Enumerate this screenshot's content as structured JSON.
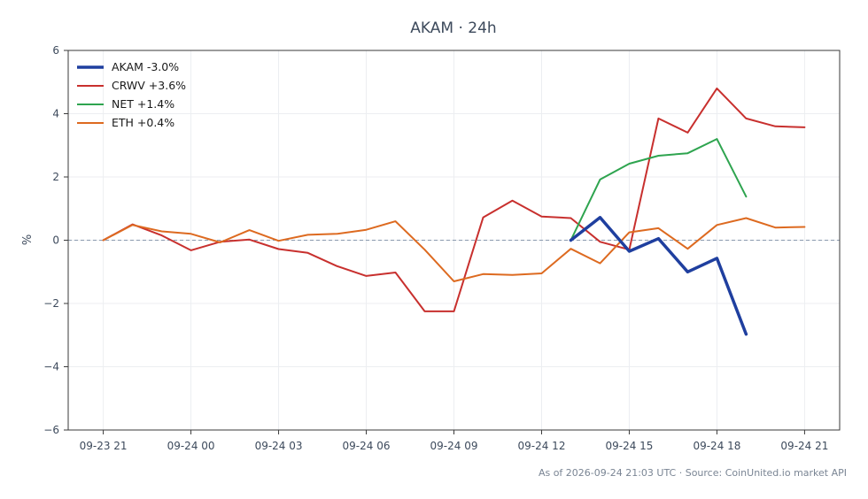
{
  "chart_data": {
    "type": "line",
    "title": "AKAM · 24h",
    "xlabel": "",
    "ylabel": "%",
    "xlim": [
      -1.2,
      25.2
    ],
    "ylim": [
      -6,
      6
    ],
    "x_ticks": [
      0,
      3,
      6,
      9,
      12,
      15,
      18,
      21,
      24
    ],
    "x_tick_labels": [
      "09-23 21",
      "09-24 00",
      "09-24 03",
      "09-24 06",
      "09-24 09",
      "09-24 12",
      "09-24 15",
      "09-24 18",
      "09-24 21"
    ],
    "y_ticks": [
      -6,
      -4,
      -2,
      0,
      2,
      4,
      6
    ],
    "y_tick_labels": [
      "−6",
      "−4",
      "−2",
      "0",
      "2",
      "4",
      "6"
    ],
    "grid": true,
    "zero_line": true,
    "legend_position": "top-left",
    "series": [
      {
        "name": "AKAM -3.0%",
        "color": "#1f3f9f",
        "emphasis": true,
        "x": [
          16,
          17,
          18,
          19,
          20,
          21,
          22
        ],
        "y": [
          0,
          0.72,
          -0.35,
          0.05,
          -1.0,
          -0.57,
          -2.97
        ]
      },
      {
        "name": "CRWV +3.6%",
        "color": "#c8302e",
        "x": [
          0,
          1,
          2,
          3,
          4,
          5,
          6,
          7,
          8,
          9,
          10,
          11,
          12,
          13,
          14,
          15,
          16,
          17,
          18,
          19,
          20,
          21,
          22,
          23,
          24
        ],
        "y": [
          0,
          0.5,
          0.15,
          -0.32,
          -0.05,
          0.02,
          -0.28,
          -0.4,
          -0.82,
          -1.13,
          -1.02,
          -2.25,
          -2.25,
          0.72,
          1.25,
          0.75,
          0.7,
          -0.05,
          -0.3,
          3.85,
          3.4,
          4.8,
          3.85,
          3.6,
          3.57
        ]
      },
      {
        "name": "NET +1.4%",
        "color": "#2ea44f",
        "x": [
          16,
          17,
          18,
          19,
          20,
          21,
          22
        ],
        "y": [
          0,
          1.92,
          2.42,
          2.67,
          2.75,
          3.2,
          1.38
        ]
      },
      {
        "name": "ETH +0.4%",
        "color": "#dd6a20",
        "x": [
          0,
          1,
          2,
          3,
          4,
          5,
          6,
          7,
          8,
          9,
          10,
          11,
          12,
          13,
          14,
          15,
          16,
          17,
          18,
          19,
          20,
          21,
          22,
          23,
          24
        ],
        "y": [
          0,
          0.48,
          0.28,
          0.2,
          -0.07,
          0.32,
          -0.02,
          0.17,
          0.2,
          0.33,
          0.6,
          -0.3,
          -1.3,
          -1.07,
          -1.1,
          -1.05,
          -0.27,
          -0.73,
          0.25,
          0.38,
          -0.27,
          0.48,
          0.7,
          0.4,
          0.42
        ]
      }
    ]
  },
  "footer": {
    "source_text": "As of 2026-09-24 21:03 UTC · Source: CoinUnited.io market API"
  }
}
